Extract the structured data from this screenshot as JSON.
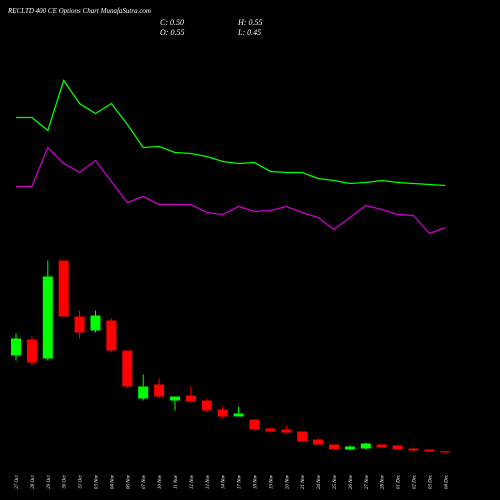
{
  "chart_data": {
    "type": "candlestick",
    "title": "RECLTD 400 CE Options  Chart MunafaSutra.com",
    "readout": [
      "C: 0.50",
      "O: 0.55",
      "H: 0.55",
      "L: 0.45"
    ],
    "categories": [
      "27 Oct",
      "28 Oct",
      "29 Oct",
      "30 Oct",
      "31 Oct",
      "03 Nov",
      "04 Nov",
      "06 Nov",
      "07 Nov",
      "10 Nov",
      "11 Nov",
      "12 Nov",
      "13 Nov",
      "14 Nov",
      "17 Nov",
      "18 Nov",
      "19 Nov",
      "20 Nov",
      "21 Nov",
      "24 Nov",
      "25 Nov",
      "26 Nov",
      "27 Nov",
      "28 Nov",
      "01 Dec",
      "02 Dec",
      "03 Dec",
      "04 Dec"
    ],
    "open": [
      4.38,
      5.02,
      4.26,
      8.18,
      5.94,
      5.38,
      5.78,
      4.58,
      2.66,
      3.22,
      2.58,
      2.78,
      2.58,
      2.22,
      1.94,
      1.82,
      1.46,
      1.42,
      1.34,
      1.02,
      0.82,
      0.62,
      0.66,
      0.82,
      0.78,
      0.66,
      0.62,
      0.55
    ],
    "high": [
      5.26,
      5.14,
      8.18,
      8.18,
      6.18,
      6.18,
      5.86,
      4.58,
      3.62,
      3.46,
      2.74,
      3.14,
      2.66,
      2.34,
      2.34,
      1.82,
      1.5,
      1.58,
      1.34,
      1.06,
      0.82,
      0.78,
      0.9,
      0.82,
      0.78,
      0.7,
      0.62,
      0.55
    ],
    "low": [
      4.18,
      3.98,
      4.18,
      5.94,
      5.06,
      5.3,
      4.5,
      3.1,
      2.58,
      2.66,
      2.18,
      2.5,
      2.14,
      1.86,
      1.94,
      1.38,
      1.3,
      1.26,
      0.94,
      0.82,
      0.62,
      0.58,
      0.62,
      0.7,
      0.62,
      0.54,
      0.54,
      0.45
    ],
    "close": [
      5.06,
      4.1,
      7.54,
      5.94,
      5.3,
      5.98,
      4.58,
      3.14,
      3.14,
      2.74,
      2.74,
      2.54,
      2.18,
      1.94,
      2.06,
      1.42,
      1.34,
      1.3,
      0.94,
      0.82,
      0.62,
      0.74,
      0.86,
      0.7,
      0.62,
      0.58,
      0.54,
      0.5
    ],
    "up_color": "#00ff00",
    "down_color": "#ff0000",
    "lines": [
      {
        "color": "#00ff00",
        "values": [
          13.9,
          13.9,
          13.38,
          15.38,
          14.46,
          14.06,
          14.46,
          13.62,
          12.7,
          12.74,
          12.5,
          12.46,
          12.34,
          12.14,
          12.06,
          12.1,
          11.74,
          11.7,
          11.7,
          11.46,
          11.38,
          11.26,
          11.3,
          11.38,
          11.3,
          11.26,
          11.22,
          11.18
        ]
      },
      {
        "color": "#cc00cc",
        "values": [
          11.14,
          11.14,
          12.7,
          12.06,
          11.7,
          12.18,
          11.34,
          10.5,
          10.74,
          10.42,
          10.42,
          10.42,
          10.1,
          10.02,
          10.34,
          10.14,
          10.18,
          10.34,
          10.1,
          9.9,
          9.42,
          9.9,
          10.38,
          10.22,
          10.02,
          9.98,
          9.26,
          9.5
        ]
      }
    ],
    "ylim": [
      0,
      18.6
    ]
  }
}
